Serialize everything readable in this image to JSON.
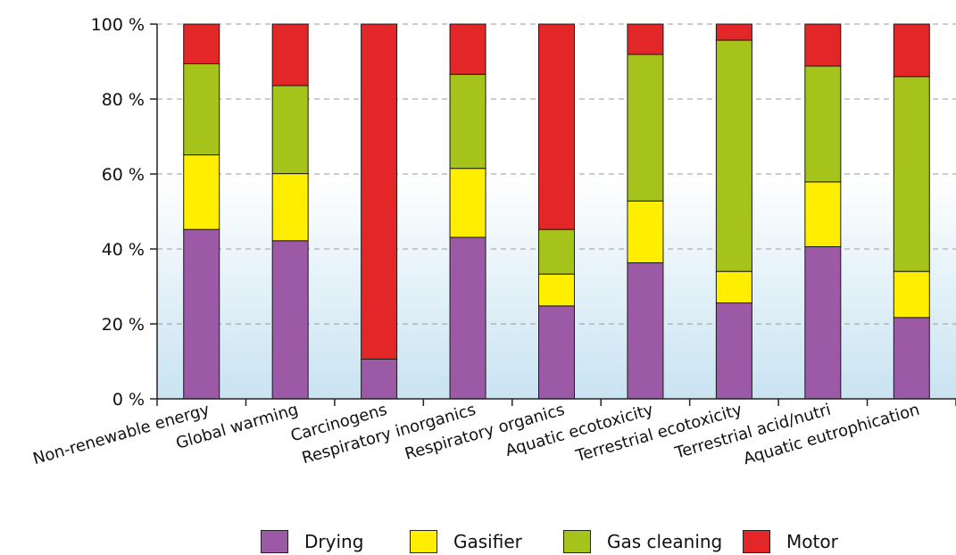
{
  "chart_data": {
    "type": "bar",
    "stacked": true,
    "ylim": [
      0,
      100
    ],
    "yticks": [
      0,
      20,
      40,
      60,
      80,
      100
    ],
    "ytick_labels": [
      "0 %",
      "20 %",
      "40 %",
      "60 %",
      "80 %",
      "100 %"
    ],
    "grid": "horizontal dashed",
    "categories": [
      "Non-renewable energy",
      "Global warming",
      "Carcinogens",
      "Respiratory inorganics",
      "Respiratory organics",
      "Aquatic ecotoxicity",
      "Terrestrial ecotoxicity",
      "Terrestrial acid/nutri",
      "Aquatic eutrophication"
    ],
    "series": [
      {
        "name": "Drying",
        "color": "#9b59a6",
        "values": [
          45.2,
          42.2,
          10.6,
          43.1,
          24.8,
          36.3,
          25.6,
          40.6,
          21.7
        ]
      },
      {
        "name": "Gasifier",
        "color": "#ffee00",
        "values": [
          19.9,
          17.9,
          0,
          18.4,
          8.5,
          16.5,
          8.4,
          17.3,
          12.3
        ]
      },
      {
        "name": "Gas cleaning",
        "color": "#a5c31b",
        "values": [
          24.3,
          23.5,
          0,
          25.1,
          11.9,
          39.1,
          61.7,
          30.9,
          52.0
        ]
      },
      {
        "name": "Motor",
        "color": "#e32728",
        "values": [
          10.6,
          16.4,
          89.4,
          13.4,
          54.8,
          8.1,
          4.3,
          11.2,
          14.0
        ]
      }
    ],
    "legend_position": "bottom"
  }
}
